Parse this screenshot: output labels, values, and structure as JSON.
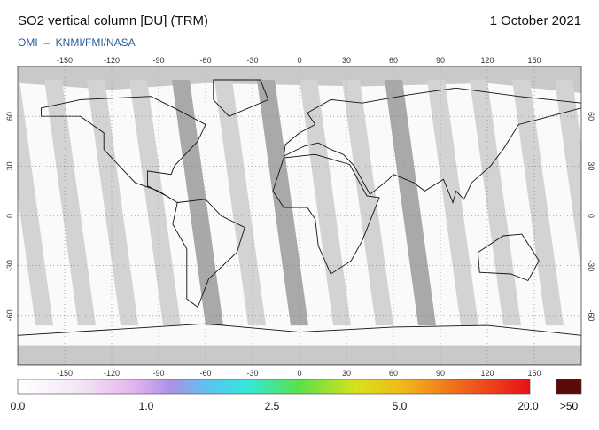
{
  "header": {
    "title": "SO2 vertical column [DU] (TRM)",
    "date": "1 October 2021",
    "credit": "OMI  –  KNMI/FMI/NASA"
  },
  "map": {
    "lon_ticks": [
      -150,
      -120,
      -90,
      -60,
      -30,
      0,
      30,
      60,
      90,
      120,
      150
    ],
    "lat_ticks": [
      60,
      30,
      0,
      -30,
      -60
    ]
  },
  "colorbar": {
    "labels": [
      "0.0",
      "1.0",
      "2.5",
      "5.0",
      "20.0"
    ],
    "overflow_label": ">50"
  }
}
